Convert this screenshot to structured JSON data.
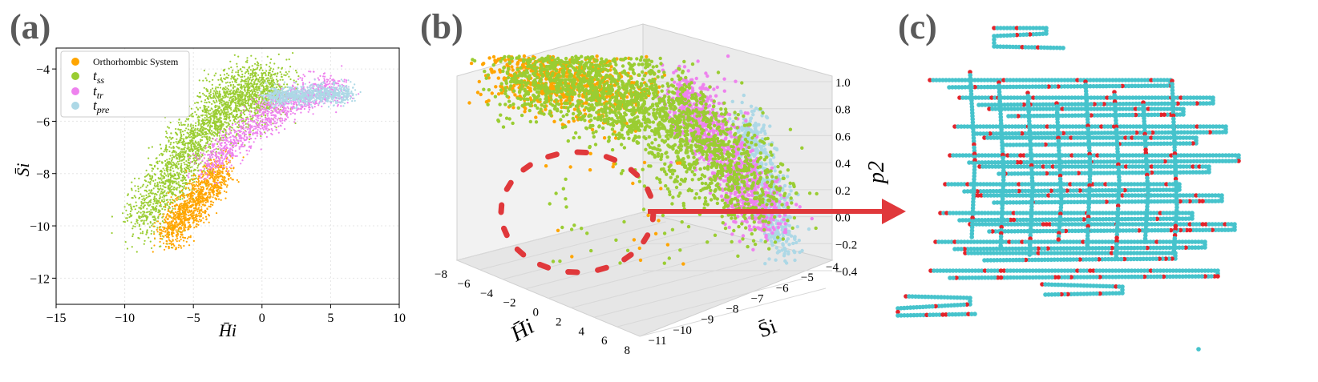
{
  "panels": {
    "a": {
      "letter": "(a)"
    },
    "b": {
      "letter": "(b)"
    },
    "c": {
      "letter": "(c)"
    }
  },
  "colors": {
    "orthorhombic": "#ffa500",
    "t_ss": "#9acd32",
    "t_tr": "#ee82ee",
    "t_pre": "#add8e6",
    "arrow": "#e0383b",
    "chain": "#46c3cc",
    "chain_defect": "#e3232a"
  },
  "chart_data": [
    {
      "type": "scatter",
      "panel": "(a)",
      "xlabel": "H̄i",
      "ylabel": "S̄i",
      "xlim": [
        -15,
        10
      ],
      "ylim": [
        -13,
        -3.2
      ],
      "xticks": [
        "−15",
        "−10",
        "−5",
        "0",
        "5",
        "10"
      ],
      "yticks": [
        "−12",
        "−10",
        "−8",
        "−6",
        "−4"
      ],
      "grid": true,
      "legend_position": "top-left",
      "legend": [
        {
          "key": "orth",
          "label": "Orthorhombic System"
        },
        {
          "key": "tss",
          "label": "t",
          "sub": "ss"
        },
        {
          "key": "ttr",
          "label": "t",
          "sub": "tr"
        },
        {
          "key": "tpre",
          "label": "t",
          "sub": "pre"
        }
      ],
      "series": [
        {
          "key": "tss",
          "center_x": -4.0,
          "center_y": -8.3,
          "x_range": [
            -9.5,
            2.0
          ],
          "y_range": [
            -10.8,
            -4.8
          ]
        },
        {
          "key": "orth",
          "center_x": -5.4,
          "center_y": -9.7,
          "x_range": [
            -7.5,
            -2.0
          ],
          "y_range": [
            -10.9,
            -7.5
          ]
        },
        {
          "key": "ttr",
          "center_x": -1.0,
          "center_y": -5.8,
          "x_range": [
            -4.5,
            6.5
          ],
          "y_range": [
            -8.0,
            -4.8
          ]
        },
        {
          "key": "tpre",
          "center_x": 3.0,
          "center_y": -5.1,
          "x_range": [
            0.0,
            7.0
          ],
          "y_range": [
            -5.8,
            -4.6
          ]
        }
      ]
    },
    {
      "type": "scatter",
      "panel": "(b)",
      "projection": "3d",
      "xlabel": "H̄i",
      "ylabel": "S̄i",
      "zlabel": "p2",
      "xlim": [
        -9,
        8
      ],
      "ylim": [
        -11.5,
        -4
      ],
      "zlim": [
        -0.4,
        1.0
      ],
      "xticks": [
        "−8",
        "−6",
        "−4",
        "−2",
        "0",
        "2",
        "4",
        "6",
        "8"
      ],
      "yticks": [
        "−11",
        "−10",
        "−9",
        "−8",
        "−7",
        "−6",
        "−5",
        "−4"
      ],
      "zticks": [
        "1.0",
        "0.8",
        "0.6",
        "0.4",
        "0.2",
        "0.0",
        "−0.2",
        "−0.4"
      ],
      "annotation": "dashed red ellipse around low-p2 outlier points with arrow to panel (c)"
    }
  ]
}
